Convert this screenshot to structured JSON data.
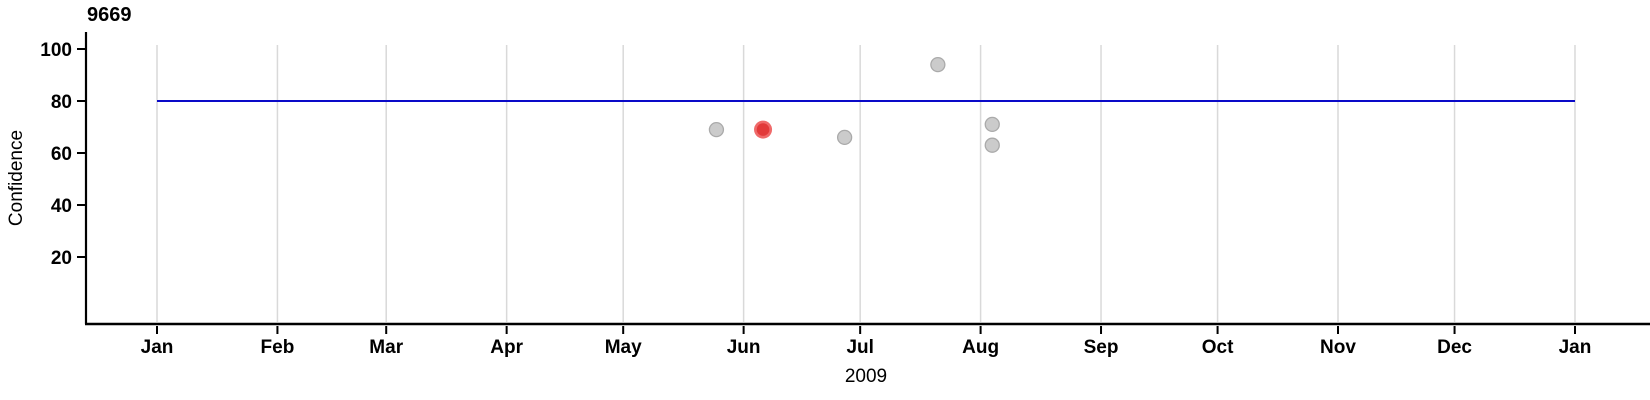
{
  "chart_data": {
    "type": "scatter",
    "title": "9669",
    "xlabel": "2009",
    "ylabel": "Confidence",
    "x_axis": {
      "year_label": "2009",
      "months": [
        "Jan",
        "Feb",
        "Mar",
        "Apr",
        "May",
        "Jun",
        "Jul",
        "Aug",
        "Sep",
        "Oct",
        "Nov",
        "Dec",
        "Jan"
      ],
      "month_start_day_offsets": [
        0,
        31,
        59,
        90,
        120,
        151,
        181,
        212,
        243,
        273,
        304,
        334,
        365
      ],
      "range_days": [
        0,
        365
      ]
    },
    "y_axis": {
      "ticks": [
        20,
        40,
        60,
        80,
        100
      ],
      "range": [
        -6,
        106
      ]
    },
    "reference_line": {
      "value": 80,
      "span_days": [
        0,
        365
      ],
      "color": "#0a0ac8"
    },
    "points": [
      {
        "date": "2009-05-25",
        "days_from_jan1": 144,
        "value": 69,
        "state": "normal"
      },
      {
        "date": "2009-06-06",
        "days_from_jan1": 156,
        "value": 69,
        "state": "selected"
      },
      {
        "date": "2009-06-27",
        "days_from_jan1": 177,
        "value": 66,
        "state": "normal"
      },
      {
        "date": "2009-07-21",
        "days_from_jan1": 201,
        "value": 94,
        "state": "normal"
      },
      {
        "date": "2009-08-04",
        "days_from_jan1": 215,
        "value": 71,
        "state": "normal"
      },
      {
        "date": "2009-08-04",
        "days_from_jan1": 215,
        "value": 63,
        "state": "normal"
      }
    ],
    "colors": {
      "point_fill": "#cbcbcb",
      "point_stroke": "#aaaaaa",
      "selected_fill": "#e23a3a",
      "selected_ring": "#ef6a6a",
      "reference_line": "#0a0ac8",
      "gridline": "#d9d9d9",
      "axis": "#000000"
    },
    "grid": {
      "vertical_month_gridlines": true,
      "horizontal_gridlines": false
    },
    "legend": "none"
  }
}
